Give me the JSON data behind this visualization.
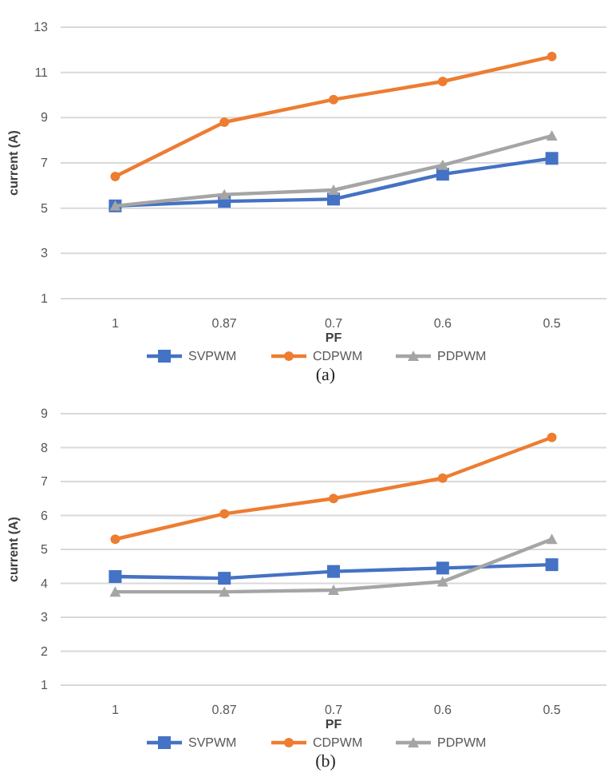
{
  "chart_data": [
    {
      "type": "line",
      "xlabel": "PF",
      "ylabel": "current (A)",
      "annotations": [
        "(a)"
      ],
      "categories": [
        "1",
        "0.87",
        "0.7",
        "0.6",
        "0.5"
      ],
      "ylim": [
        1,
        13
      ],
      "yticks": [
        1,
        3,
        5,
        7,
        9,
        11,
        13
      ],
      "grid": "y",
      "legend": "bottom",
      "series": [
        {
          "name": "SVPWM",
          "color": "#4472c4",
          "marker": "square",
          "values": [
            5.1,
            5.3,
            5.4,
            6.5,
            7.2
          ]
        },
        {
          "name": "CDPWM",
          "color": "#ed7d31",
          "marker": "circle",
          "values": [
            6.4,
            8.8,
            9.8,
            10.6,
            11.7
          ]
        },
        {
          "name": "PDPWM",
          "color": "#a5a5a5",
          "marker": "triangle",
          "values": [
            5.1,
            5.6,
            5.8,
            6.9,
            8.2
          ]
        }
      ]
    },
    {
      "type": "line",
      "xlabel": "PF",
      "ylabel": "current (A)",
      "annotations": [
        "(b)"
      ],
      "categories": [
        "1",
        "0.87",
        "0.7",
        "0.6",
        "0.5"
      ],
      "ylim": [
        1,
        9
      ],
      "yticks": [
        1,
        2,
        3,
        4,
        5,
        6,
        7,
        8,
        9
      ],
      "grid": "y",
      "legend": "bottom",
      "series": [
        {
          "name": "SVPWM",
          "color": "#4472c4",
          "marker": "square",
          "values": [
            4.2,
            4.15,
            4.35,
            4.45,
            4.55
          ]
        },
        {
          "name": "CDPWM",
          "color": "#ed7d31",
          "marker": "circle",
          "values": [
            5.3,
            6.05,
            6.5,
            7.1,
            8.3
          ]
        },
        {
          "name": "PDPWM",
          "color": "#a5a5a5",
          "marker": "triangle",
          "values": [
            3.75,
            3.75,
            3.8,
            4.05,
            5.3
          ]
        }
      ]
    }
  ]
}
